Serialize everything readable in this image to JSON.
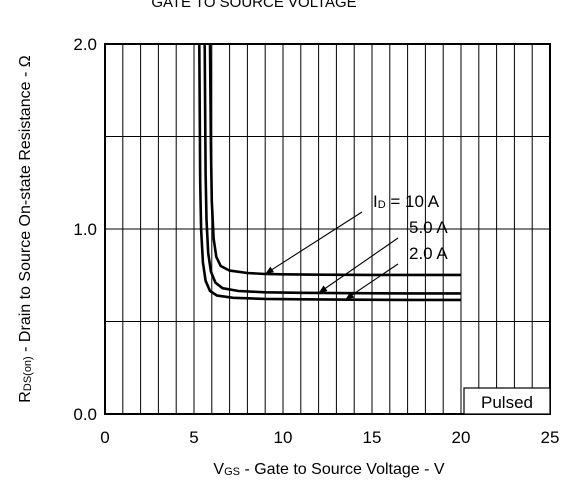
{
  "chart_data": {
    "type": "line",
    "title": "GATE TO SOURCE VOLTAGE",
    "xlabel": {
      "main": "V",
      "sub": "GS",
      "rest": " - Gate to Source Voltage - V"
    },
    "ylabel": {
      "main": "R",
      "sub": "DS(on)",
      "rest": " - Drain to Source On-state Resistance - Ω"
    },
    "xlim": [
      0,
      25
    ],
    "ylim": [
      0,
      2
    ],
    "x_ticks": [
      "0",
      "5",
      "10",
      "15",
      "20",
      "25"
    ],
    "y_ticks": [
      "0.0",
      "1.0",
      "2.0"
    ],
    "x_grid_step": 1,
    "y_grid_step": 0.5,
    "grid": true,
    "series": [
      {
        "name": "ID = 10 A",
        "x": [
          5.9,
          5.95,
          6.0,
          6.1,
          6.25,
          6.5,
          7.0,
          8.0,
          9.0,
          10.0,
          12.0,
          15.0,
          20.0
        ],
        "y": [
          2.0,
          1.45,
          1.15,
          0.95,
          0.85,
          0.8,
          0.775,
          0.762,
          0.757,
          0.755,
          0.753,
          0.752,
          0.752
        ]
      },
      {
        "name": "5.0 A",
        "x": [
          5.6,
          5.65,
          5.7,
          5.8,
          5.95,
          6.2,
          6.6,
          7.5,
          9.0,
          11.0,
          14.0,
          17.0,
          20.0
        ],
        "y": [
          2.0,
          1.3,
          1.05,
          0.87,
          0.77,
          0.71,
          0.68,
          0.665,
          0.658,
          0.655,
          0.653,
          0.652,
          0.652
        ]
      },
      {
        "name": "2.0 A",
        "x": [
          5.3,
          5.35,
          5.4,
          5.5,
          5.65,
          5.9,
          6.3,
          7.2,
          9.0,
          11.0,
          14.0,
          17.0,
          20.0
        ],
        "y": [
          2.0,
          1.25,
          1.0,
          0.82,
          0.72,
          0.665,
          0.64,
          0.628,
          0.622,
          0.62,
          0.618,
          0.617,
          0.617
        ]
      }
    ],
    "annotations": [
      {
        "label_main": "I",
        "label_sub": "D",
        "label_rest": " = 10 A",
        "target": [
          9.0,
          0.757
        ]
      },
      {
        "label_main": "5.0 A",
        "label_sub": "",
        "label_rest": "",
        "target": [
          12.0,
          0.654
        ]
      },
      {
        "label_main": "2.0 A",
        "label_sub": "",
        "label_rest": "",
        "target": [
          13.5,
          0.619
        ]
      }
    ],
    "note": "Pulsed"
  }
}
